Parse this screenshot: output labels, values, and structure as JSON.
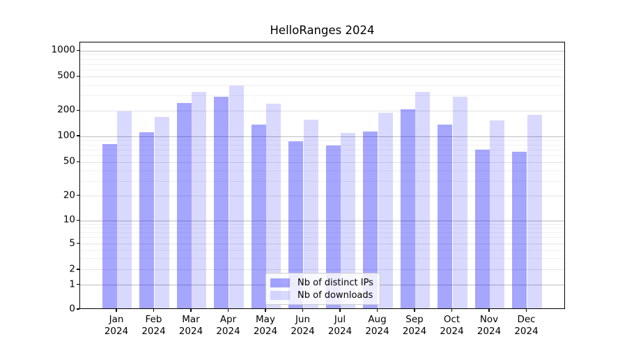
{
  "chart_data": {
    "type": "bar",
    "title": "HelloRanges 2024",
    "categories": [
      "Jan",
      "Feb",
      "Mar",
      "Apr",
      "May",
      "Jun",
      "Jul",
      "Aug",
      "Sep",
      "Oct",
      "Nov",
      "Dec"
    ],
    "category_year": "2024",
    "series": [
      {
        "name": "Nb of distinct IPs",
        "color": "rgba(0,0,255,0.35)",
        "color_hex": "#a6a6ff",
        "values": [
          78,
          108,
          237,
          281,
          134,
          85,
          76,
          110,
          202,
          132,
          68,
          64
        ]
      },
      {
        "name": "Nb of downloads",
        "color": "rgba(0,0,255,0.15)",
        "color_hex": "#d9d9ff",
        "values": [
          190,
          163,
          320,
          378,
          232,
          151,
          106,
          185,
          323,
          283,
          149,
          172
        ]
      }
    ],
    "xlabel": "",
    "ylabel": "",
    "yscale": "symlog",
    "ytick_labels": [
      "0",
      "1",
      "2",
      "5",
      "10",
      "20",
      "50",
      "100",
      "200",
      "500",
      "1000"
    ],
    "ylim": [
      0,
      1200
    ],
    "grid": true,
    "legend_position": "lower center"
  }
}
